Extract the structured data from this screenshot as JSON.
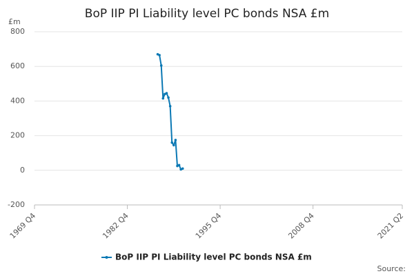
{
  "chart_data": {
    "type": "line",
    "title": "BoP IIP PI Liability level PC bonds NSA £m",
    "y_label": "£m",
    "source": "Source:",
    "x": [
      "1987 Q1",
      "1987 Q2",
      "1987 Q3",
      "1987 Q4",
      "1988 Q1",
      "1988 Q2",
      "1988 Q3",
      "1988 Q4",
      "1989 Q1",
      "1989 Q2",
      "1989 Q3",
      "1989 Q4",
      "1990 Q1",
      "1990 Q2",
      "1990 Q3"
    ],
    "series": [
      {
        "name": "BoP IIP PI Liability level PC bonds NSA £m",
        "color": "#0a78b4",
        "values": [
          670,
          665,
          605,
          415,
          440,
          445,
          420,
          370,
          160,
          145,
          175,
          25,
          30,
          5,
          10
        ]
      }
    ],
    "xlim": [
      "1969 Q4",
      "2021 Q2"
    ],
    "xticks": [
      "1969 Q4",
      "1982 Q4",
      "1995 Q4",
      "2008 Q4",
      "2021 Q2"
    ],
    "ylim": [
      -200,
      800
    ],
    "yticks": [
      -200,
      0,
      200,
      400,
      600,
      800
    ],
    "grid": true
  }
}
